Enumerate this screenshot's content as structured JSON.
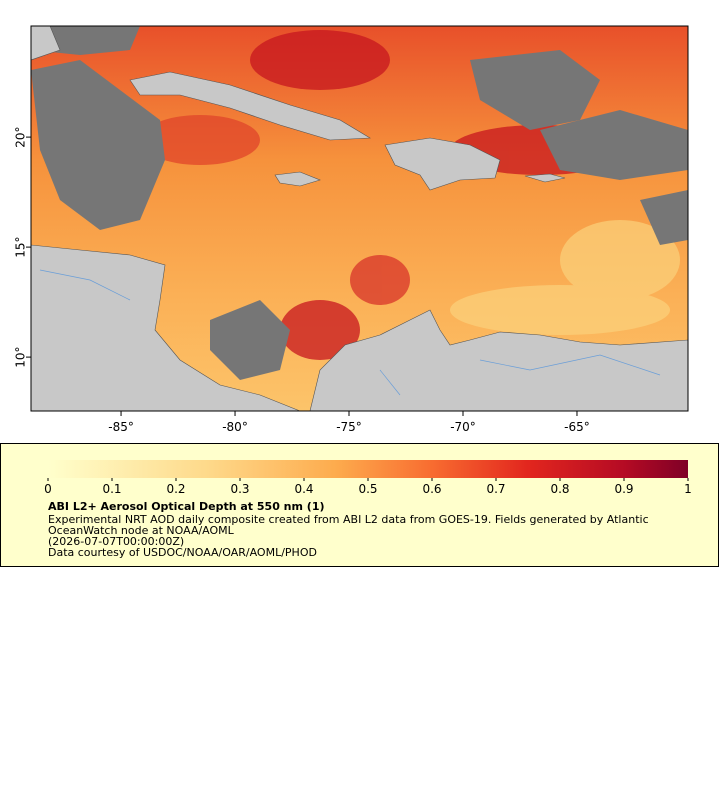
{
  "map": {
    "xlim": [
      -88.95,
      -60.13
    ],
    "ylim": [
      7.55,
      25.05
    ],
    "xticks": [
      {
        "value": -85,
        "label": "-85°"
      },
      {
        "value": -80,
        "label": "-80°"
      },
      {
        "value": -75,
        "label": "-75°"
      },
      {
        "value": -70,
        "label": "-70°"
      },
      {
        "value": -65,
        "label": "-65°"
      }
    ],
    "yticks": [
      {
        "value": 10,
        "label": "10°"
      },
      {
        "value": 15,
        "label": "15°"
      },
      {
        "value": 20,
        "label": "20°"
      }
    ]
  },
  "colorbar": {
    "lim": [
      0,
      1
    ],
    "ticks": [
      0,
      0.1,
      0.2,
      0.3,
      0.4,
      0.5,
      0.6,
      0.7,
      0.8,
      0.9,
      1
    ]
  },
  "legend": {
    "title": "ABI L2+ Aerosol Optical Depth at 550 nm (1)",
    "lines": [
      "Experimental NRT AOD daily composite created from ABI L2 data from GOES-19. Fields generated by Atlantic",
      "OceanWatch node at NOAA/AOML",
      "(2026-07-07T00:00:00Z)",
      "Data courtesy of USDOC/NOAA/OAR/AOML/PHOD"
    ]
  }
}
